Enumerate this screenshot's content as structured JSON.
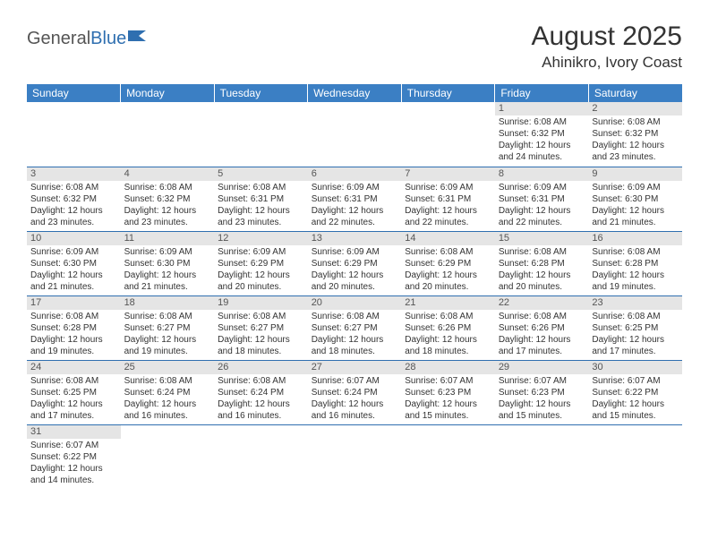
{
  "logo": {
    "part1": "General",
    "part2": "Blue"
  },
  "title": "August 2025",
  "location": "Ahinikro, Ivory Coast",
  "header_bg": "#3b7fc4",
  "header_fg": "#ffffff",
  "daynum_bg": "#e5e5e5",
  "border_color": "#2f6fb0",
  "text_color": "#333333",
  "font_family": "Arial",
  "days_of_week": [
    "Sunday",
    "Monday",
    "Tuesday",
    "Wednesday",
    "Thursday",
    "Friday",
    "Saturday"
  ],
  "cell_font_size": 10,
  "header_font_size": 12,
  "title_font_size": 30,
  "weeks": [
    [
      null,
      null,
      null,
      null,
      null,
      {
        "n": "1",
        "sunrise": "6:08 AM",
        "sunset": "6:32 PM",
        "daylight": "12 hours and 24 minutes."
      },
      {
        "n": "2",
        "sunrise": "6:08 AM",
        "sunset": "6:32 PM",
        "daylight": "12 hours and 23 minutes."
      }
    ],
    [
      {
        "n": "3",
        "sunrise": "6:08 AM",
        "sunset": "6:32 PM",
        "daylight": "12 hours and 23 minutes."
      },
      {
        "n": "4",
        "sunrise": "6:08 AM",
        "sunset": "6:32 PM",
        "daylight": "12 hours and 23 minutes."
      },
      {
        "n": "5",
        "sunrise": "6:08 AM",
        "sunset": "6:31 PM",
        "daylight": "12 hours and 23 minutes."
      },
      {
        "n": "6",
        "sunrise": "6:09 AM",
        "sunset": "6:31 PM",
        "daylight": "12 hours and 22 minutes."
      },
      {
        "n": "7",
        "sunrise": "6:09 AM",
        "sunset": "6:31 PM",
        "daylight": "12 hours and 22 minutes."
      },
      {
        "n": "8",
        "sunrise": "6:09 AM",
        "sunset": "6:31 PM",
        "daylight": "12 hours and 22 minutes."
      },
      {
        "n": "9",
        "sunrise": "6:09 AM",
        "sunset": "6:30 PM",
        "daylight": "12 hours and 21 minutes."
      }
    ],
    [
      {
        "n": "10",
        "sunrise": "6:09 AM",
        "sunset": "6:30 PM",
        "daylight": "12 hours and 21 minutes."
      },
      {
        "n": "11",
        "sunrise": "6:09 AM",
        "sunset": "6:30 PM",
        "daylight": "12 hours and 21 minutes."
      },
      {
        "n": "12",
        "sunrise": "6:09 AM",
        "sunset": "6:29 PM",
        "daylight": "12 hours and 20 minutes."
      },
      {
        "n": "13",
        "sunrise": "6:09 AM",
        "sunset": "6:29 PM",
        "daylight": "12 hours and 20 minutes."
      },
      {
        "n": "14",
        "sunrise": "6:08 AM",
        "sunset": "6:29 PM",
        "daylight": "12 hours and 20 minutes."
      },
      {
        "n": "15",
        "sunrise": "6:08 AM",
        "sunset": "6:28 PM",
        "daylight": "12 hours and 20 minutes."
      },
      {
        "n": "16",
        "sunrise": "6:08 AM",
        "sunset": "6:28 PM",
        "daylight": "12 hours and 19 minutes."
      }
    ],
    [
      {
        "n": "17",
        "sunrise": "6:08 AM",
        "sunset": "6:28 PM",
        "daylight": "12 hours and 19 minutes."
      },
      {
        "n": "18",
        "sunrise": "6:08 AM",
        "sunset": "6:27 PM",
        "daylight": "12 hours and 19 minutes."
      },
      {
        "n": "19",
        "sunrise": "6:08 AM",
        "sunset": "6:27 PM",
        "daylight": "12 hours and 18 minutes."
      },
      {
        "n": "20",
        "sunrise": "6:08 AM",
        "sunset": "6:27 PM",
        "daylight": "12 hours and 18 minutes."
      },
      {
        "n": "21",
        "sunrise": "6:08 AM",
        "sunset": "6:26 PM",
        "daylight": "12 hours and 18 minutes."
      },
      {
        "n": "22",
        "sunrise": "6:08 AM",
        "sunset": "6:26 PM",
        "daylight": "12 hours and 17 minutes."
      },
      {
        "n": "23",
        "sunrise": "6:08 AM",
        "sunset": "6:25 PM",
        "daylight": "12 hours and 17 minutes."
      }
    ],
    [
      {
        "n": "24",
        "sunrise": "6:08 AM",
        "sunset": "6:25 PM",
        "daylight": "12 hours and 17 minutes."
      },
      {
        "n": "25",
        "sunrise": "6:08 AM",
        "sunset": "6:24 PM",
        "daylight": "12 hours and 16 minutes."
      },
      {
        "n": "26",
        "sunrise": "6:08 AM",
        "sunset": "6:24 PM",
        "daylight": "12 hours and 16 minutes."
      },
      {
        "n": "27",
        "sunrise": "6:07 AM",
        "sunset": "6:24 PM",
        "daylight": "12 hours and 16 minutes."
      },
      {
        "n": "28",
        "sunrise": "6:07 AM",
        "sunset": "6:23 PM",
        "daylight": "12 hours and 15 minutes."
      },
      {
        "n": "29",
        "sunrise": "6:07 AM",
        "sunset": "6:23 PM",
        "daylight": "12 hours and 15 minutes."
      },
      {
        "n": "30",
        "sunrise": "6:07 AM",
        "sunset": "6:22 PM",
        "daylight": "12 hours and 15 minutes."
      }
    ],
    [
      {
        "n": "31",
        "sunrise": "6:07 AM",
        "sunset": "6:22 PM",
        "daylight": "12 hours and 14 minutes."
      },
      null,
      null,
      null,
      null,
      null,
      null
    ]
  ],
  "labels": {
    "sunrise_prefix": "Sunrise: ",
    "sunset_prefix": "Sunset: ",
    "daylight_prefix": "Daylight: "
  }
}
